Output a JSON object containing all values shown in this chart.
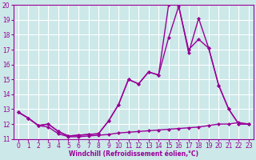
{
  "xlabel": "Windchill (Refroidissement éolien,°C)",
  "background_color": "#cce8e8",
  "grid_color": "#ffffff",
  "line_color": "#990099",
  "xlim": [
    -0.5,
    23.5
  ],
  "ylim": [
    11,
    20
  ],
  "xticks": [
    0,
    1,
    2,
    3,
    4,
    5,
    6,
    7,
    8,
    9,
    10,
    11,
    12,
    13,
    14,
    15,
    16,
    17,
    18,
    19,
    20,
    21,
    22,
    23
  ],
  "yticks": [
    11,
    12,
    13,
    14,
    15,
    16,
    17,
    18,
    19,
    20
  ],
  "line1_x": [
    0,
    1,
    2,
    3,
    4,
    5,
    6,
    7,
    8,
    9,
    10,
    11,
    12,
    13,
    14,
    15,
    16,
    17,
    18,
    19,
    20,
    21,
    22,
    23
  ],
  "line1_y": [
    12.8,
    12.4,
    11.9,
    11.8,
    11.35,
    11.15,
    11.15,
    11.2,
    11.25,
    11.3,
    11.4,
    11.45,
    11.5,
    11.55,
    11.6,
    11.65,
    11.7,
    11.75,
    11.8,
    11.9,
    12.0,
    12.0,
    12.1,
    12.0
  ],
  "line2_x": [
    0,
    1,
    2,
    3,
    4,
    5,
    6,
    7,
    8,
    9,
    10,
    11,
    12,
    13,
    14,
    15,
    16,
    17,
    18,
    19,
    20,
    21,
    22,
    23
  ],
  "line2_y": [
    12.8,
    12.4,
    11.9,
    12.0,
    11.5,
    11.2,
    11.25,
    11.3,
    11.35,
    12.2,
    13.3,
    15.0,
    14.7,
    15.5,
    15.3,
    17.8,
    19.9,
    17.0,
    17.7,
    17.1,
    14.6,
    13.0,
    12.0,
    12.0
  ],
  "line3_x": [
    0,
    1,
    2,
    3,
    4,
    5,
    6,
    7,
    8,
    9,
    10,
    11,
    12,
    13,
    14,
    15,
    16,
    17,
    18,
    19,
    20,
    21,
    22,
    23
  ],
  "line3_y": [
    12.8,
    12.4,
    11.9,
    12.0,
    11.5,
    11.2,
    11.25,
    11.3,
    11.35,
    12.2,
    13.3,
    15.0,
    14.7,
    15.5,
    15.3,
    20.0,
    20.0,
    16.8,
    19.1,
    17.1,
    14.6,
    13.0,
    12.0,
    12.0
  ],
  "marker": "D",
  "markersize": 2.5,
  "linewidth": 1.0,
  "tick_fontsize": 5.5,
  "xlabel_fontsize": 5.5
}
